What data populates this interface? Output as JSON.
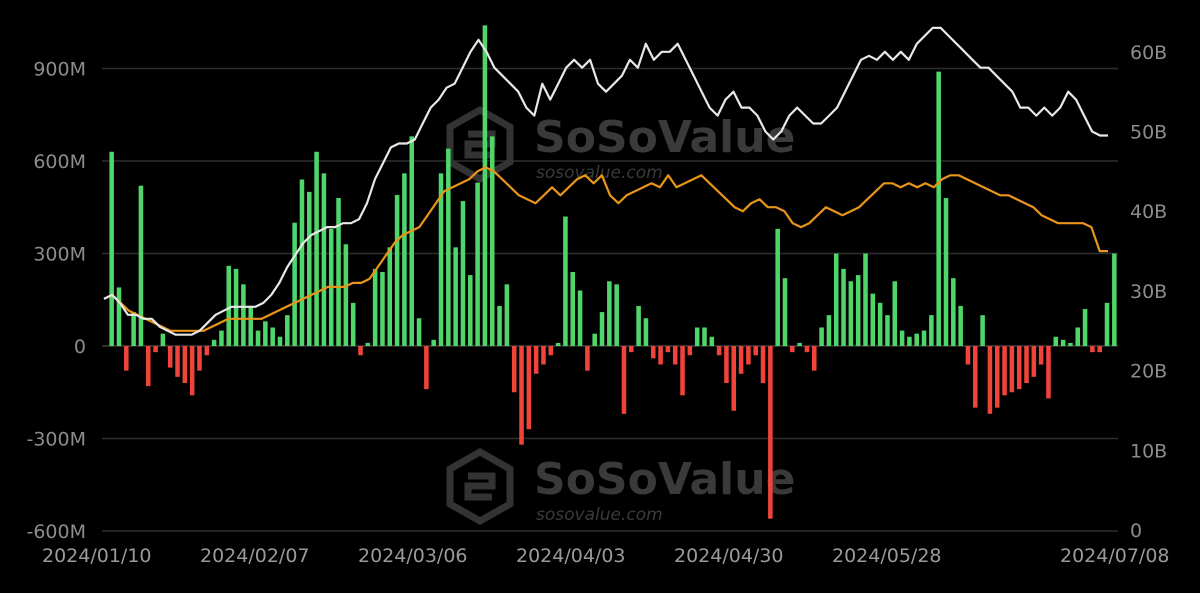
{
  "chart_data": {
    "type": "bar+line",
    "x_ticks": [
      "2024/01/10",
      "2024/02/07",
      "2024/03/06",
      "2024/04/03",
      "2024/04/30",
      "2024/05/28",
      "2024/07/08"
    ],
    "y_left": {
      "range": [
        -600,
        1000
      ],
      "ticks": [
        {
          "value": 900,
          "label": "900M"
        },
        {
          "value": 600,
          "label": "600M"
        },
        {
          "value": 300,
          "label": "300M"
        },
        {
          "value": 0,
          "label": "0"
        },
        {
          "value": -300,
          "label": "-300M"
        },
        {
          "value": -600,
          "label": "-600M"
        }
      ]
    },
    "y_right": {
      "range": [
        0,
        66
      ],
      "ticks": [
        {
          "value": 60,
          "label": "60B"
        },
        {
          "value": 50,
          "label": "50B"
        },
        {
          "value": 40,
          "label": "40B"
        },
        {
          "value": 30,
          "label": "30B"
        },
        {
          "value": 20,
          "label": "20B"
        },
        {
          "value": 10,
          "label": "10B"
        },
        {
          "value": 0,
          "label": "0"
        }
      ]
    },
    "grid": true,
    "colors": {
      "inflow": "#4fd66a",
      "outflow": "#f0443a",
      "white_line": "#e8e8e8",
      "orange_line": "#e8951a",
      "grid": "#2e2e2e"
    },
    "bars": [
      630,
      190,
      -80,
      110,
      520,
      -130,
      -20,
      40,
      -70,
      -100,
      -120,
      -160,
      -80,
      -30,
      20,
      50,
      260,
      250,
      200,
      130,
      50,
      80,
      60,
      30,
      100,
      400,
      540,
      500,
      630,
      560,
      380,
      480,
      330,
      140,
      -30,
      10,
      250,
      240,
      320,
      490,
      560,
      680,
      90,
      -140,
      20,
      560,
      640,
      320,
      470,
      230,
      530,
      1040,
      680,
      130,
      200,
      -150,
      -320,
      -270,
      -90,
      -60,
      -30,
      10,
      420,
      240,
      180,
      -80,
      40,
      110,
      210,
      200,
      -220,
      -20,
      130,
      90,
      -40,
      -60,
      -20,
      -60,
      -160,
      -30,
      60,
      60,
      30,
      -30,
      -120,
      -210,
      -90,
      -60,
      -30,
      -120,
      -560,
      380,
      220,
      -20,
      10,
      -20,
      -80,
      60,
      100,
      300,
      250,
      210,
      230,
      300,
      170,
      140,
      100,
      210,
      50,
      30,
      40,
      50,
      100,
      890,
      480,
      220,
      130,
      -60,
      -200,
      100,
      -220,
      -200,
      -160,
      -150,
      -140,
      -120,
      -100,
      -60,
      -170,
      30,
      20,
      10,
      60,
      120,
      -20,
      -20,
      140,
      300
    ],
    "white_line": [
      29,
      29.5,
      28.5,
      27,
      27,
      26.5,
      26.5,
      25.5,
      25,
      24.5,
      24.5,
      24.5,
      25,
      26,
      27,
      27.5,
      28,
      28,
      28,
      28,
      28.5,
      29.5,
      31,
      33,
      34.5,
      36,
      37,
      37.5,
      38,
      38,
      38.5,
      38.5,
      39,
      41,
      44,
      46,
      48,
      48.5,
      48.5,
      49,
      51,
      53,
      54,
      55.5,
      56,
      58,
      60,
      61.5,
      60,
      58,
      57,
      56,
      55,
      53,
      52,
      56,
      54,
      56,
      58,
      59,
      58,
      59,
      56,
      55,
      56,
      57,
      59,
      58,
      61,
      59,
      60,
      60,
      61,
      59,
      57,
      55,
      53,
      52,
      54,
      55,
      53,
      53,
      52,
      50,
      49,
      50,
      52,
      53,
      52,
      51,
      51,
      52,
      53,
      55,
      57,
      59,
      59.5,
      59,
      60,
      59,
      60,
      59,
      61,
      62,
      63,
      63,
      62,
      61,
      60,
      59,
      58,
      58,
      57,
      56,
      55,
      53,
      53,
      52,
      53,
      52,
      53,
      55,
      54,
      52,
      50,
      49.5,
      49.5
    ],
    "orange_line": [
      29,
      29.5,
      28.5,
      27.5,
      27,
      26.5,
      26,
      25.5,
      25,
      25,
      25,
      25,
      25,
      25.5,
      26,
      26.5,
      26.5,
      26.5,
      26.5,
      26.5,
      27,
      27.5,
      28,
      28.5,
      29,
      29.5,
      30,
      30.5,
      30.5,
      30.5,
      31,
      31,
      31.5,
      33,
      34.5,
      36,
      37,
      37.5,
      38,
      39.5,
      41,
      42.5,
      43,
      43.5,
      44,
      45,
      45.5,
      45,
      44,
      43,
      42,
      41.5,
      41,
      42,
      43,
      42,
      43,
      44,
      44.5,
      43.5,
      44.5,
      42,
      41,
      42,
      42.5,
      43,
      43.5,
      43,
      44.5,
      43,
      43.5,
      44,
      44.5,
      43.5,
      42.5,
      41.5,
      40.5,
      40,
      41,
      41.5,
      40.5,
      40.5,
      40,
      38.5,
      38,
      38.5,
      39.5,
      40.5,
      40,
      39.5,
      40,
      40.5,
      41.5,
      42.5,
      43.5,
      43.5,
      43,
      43.5,
      43,
      43.5,
      43,
      44,
      44.5,
      44.5,
      44,
      43.5,
      43,
      42.5,
      42,
      42,
      41.5,
      41,
      40.5,
      39.5,
      39,
      38.5,
      38.5,
      38.5,
      38.5,
      38,
      35,
      35
    ]
  },
  "watermarks": [
    {
      "brand": "SoSoValue",
      "site": "sosovalue.com"
    },
    {
      "brand": "SoSoValue",
      "site": "sosovalue.com"
    }
  ]
}
